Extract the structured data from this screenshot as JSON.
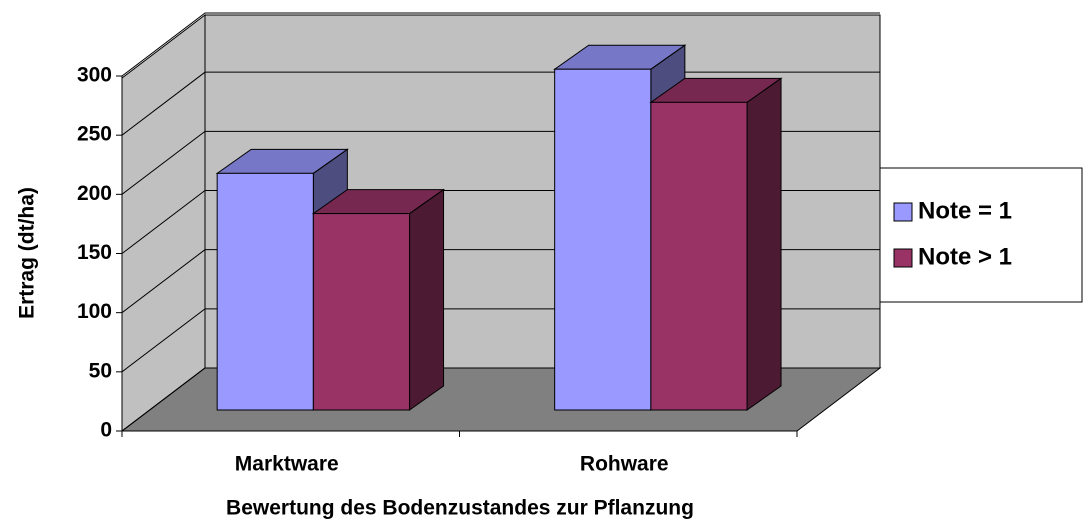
{
  "chart_data": {
    "type": "bar3d",
    "x_label": "Bewertung des Bodenzustandes zur Pflanzung",
    "y_label": "Ertrag (dt/ha)",
    "categories": [
      "Marktware",
      "Rohware"
    ],
    "series": [
      {
        "name": "Note = 1",
        "color": "#9999ff",
        "values": [
          200,
          288
        ]
      },
      {
        "name": "Note > 1",
        "color": "#993366",
        "values": [
          166,
          260
        ]
      }
    ],
    "ylim": [
      0,
      300
    ],
    "yticks": [
      0,
      50,
      100,
      150,
      200,
      250,
      300
    ],
    "grid": true,
    "legend": "right"
  }
}
